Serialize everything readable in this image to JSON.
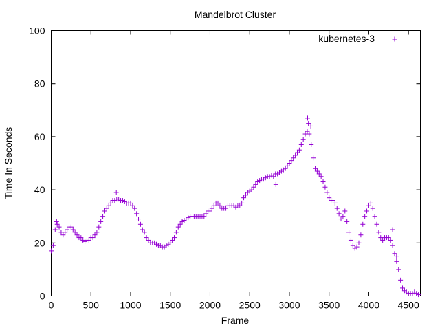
{
  "chart_data": {
    "type": "scatter",
    "title": "Mandelbrot Cluster",
    "xlabel": "Frame",
    "ylabel": "Time In Seconds",
    "xlim": [
      0,
      4650
    ],
    "ylim": [
      0,
      100
    ],
    "x_ticks": [
      0,
      500,
      1000,
      1500,
      2000,
      2500,
      3000,
      3500,
      4000,
      4500
    ],
    "y_ticks": [
      0,
      20,
      40,
      60,
      80,
      100
    ],
    "grid": false,
    "legend_position": "top-right",
    "marker": "+",
    "series": [
      {
        "name": "kubernetes-3",
        "color": "#9400d3",
        "points": [
          [
            0,
            17
          ],
          [
            25,
            19
          ],
          [
            50,
            25
          ],
          [
            75,
            27
          ],
          [
            100,
            26
          ],
          [
            125,
            24
          ],
          [
            150,
            23
          ],
          [
            175,
            24
          ],
          [
            200,
            25
          ],
          [
            225,
            26
          ],
          [
            250,
            26
          ],
          [
            275,
            25
          ],
          [
            300,
            24
          ],
          [
            325,
            23
          ],
          [
            350,
            22
          ],
          [
            375,
            22
          ],
          [
            400,
            21
          ],
          [
            425,
            20.5
          ],
          [
            450,
            21
          ],
          [
            475,
            21
          ],
          [
            500,
            22
          ],
          [
            525,
            22
          ],
          [
            550,
            23
          ],
          [
            575,
            24
          ],
          [
            600,
            26
          ],
          [
            625,
            28
          ],
          [
            650,
            30
          ],
          [
            675,
            32
          ],
          [
            700,
            33
          ],
          [
            725,
            34
          ],
          [
            750,
            35
          ],
          [
            775,
            36
          ],
          [
            800,
            36
          ],
          [
            825,
            36.5
          ],
          [
            850,
            36.5
          ],
          [
            875,
            36
          ],
          [
            900,
            36
          ],
          [
            925,
            35.5
          ],
          [
            950,
            35
          ],
          [
            975,
            35
          ],
          [
            1000,
            35
          ],
          [
            1025,
            34
          ],
          [
            1050,
            33
          ],
          [
            1075,
            31
          ],
          [
            1100,
            29
          ],
          [
            1125,
            27
          ],
          [
            1150,
            25
          ],
          [
            1175,
            24
          ],
          [
            1200,
            22
          ],
          [
            1225,
            21
          ],
          [
            1250,
            20
          ],
          [
            1275,
            20
          ],
          [
            1300,
            20
          ],
          [
            1325,
            19.5
          ],
          [
            1350,
            19
          ],
          [
            1375,
            19
          ],
          [
            1400,
            18.5
          ],
          [
            1425,
            18.5
          ],
          [
            1450,
            19
          ],
          [
            1475,
            19.5
          ],
          [
            1500,
            20
          ],
          [
            1525,
            21
          ],
          [
            1550,
            22
          ],
          [
            1575,
            24
          ],
          [
            1600,
            26
          ],
          [
            1625,
            27
          ],
          [
            1650,
            28
          ],
          [
            1675,
            28.5
          ],
          [
            1700,
            29
          ],
          [
            1725,
            29.5
          ],
          [
            1750,
            30
          ],
          [
            1775,
            30
          ],
          [
            1800,
            30
          ],
          [
            1825,
            30
          ],
          [
            1850,
            30
          ],
          [
            1875,
            30
          ],
          [
            1900,
            30
          ],
          [
            1925,
            30
          ],
          [
            1950,
            31
          ],
          [
            1975,
            32
          ],
          [
            2000,
            32
          ],
          [
            2025,
            33
          ],
          [
            2050,
            34
          ],
          [
            2075,
            35
          ],
          [
            2100,
            35
          ],
          [
            2125,
            34
          ],
          [
            2150,
            33
          ],
          [
            2175,
            33
          ],
          [
            2200,
            33
          ],
          [
            2225,
            34
          ],
          [
            2250,
            34
          ],
          [
            2275,
            34
          ],
          [
            2300,
            34
          ],
          [
            2325,
            33.5
          ],
          [
            2350,
            34
          ],
          [
            2375,
            34
          ],
          [
            2400,
            35
          ],
          [
            2425,
            37
          ],
          [
            2450,
            38
          ],
          [
            2475,
            39
          ],
          [
            2500,
            39.5
          ],
          [
            2525,
            40
          ],
          [
            2550,
            41
          ],
          [
            2575,
            42
          ],
          [
            2600,
            43
          ],
          [
            2625,
            43.5
          ],
          [
            2650,
            44
          ],
          [
            2675,
            44
          ],
          [
            2700,
            44.5
          ],
          [
            2725,
            45
          ],
          [
            2750,
            45
          ],
          [
            2775,
            45.5
          ],
          [
            2800,
            45
          ],
          [
            2825,
            46
          ],
          [
            2850,
            46
          ],
          [
            2875,
            46.5
          ],
          [
            2900,
            47
          ],
          [
            2925,
            47.5
          ],
          [
            2950,
            48
          ],
          [
            2975,
            49
          ],
          [
            3000,
            50
          ],
          [
            3025,
            51
          ],
          [
            3050,
            52
          ],
          [
            3075,
            53
          ],
          [
            3100,
            54
          ],
          [
            3125,
            55
          ],
          [
            3150,
            57
          ],
          [
            3175,
            59
          ],
          [
            3200,
            61
          ],
          [
            3225,
            62
          ],
          [
            3250,
            61
          ],
          [
            3275,
            57
          ],
          [
            3300,
            52
          ],
          [
            3325,
            48
          ],
          [
            3350,
            47
          ],
          [
            3375,
            46
          ],
          [
            3400,
            45
          ],
          [
            3425,
            43
          ],
          [
            3450,
            41
          ],
          [
            3475,
            39
          ],
          [
            3500,
            37
          ],
          [
            3525,
            36
          ],
          [
            3550,
            36
          ],
          [
            3575,
            35
          ],
          [
            3600,
            33
          ],
          [
            3625,
            31
          ],
          [
            3650,
            29
          ],
          [
            3675,
            30
          ],
          [
            3700,
            32
          ],
          [
            3725,
            28
          ],
          [
            3750,
            24
          ],
          [
            3775,
            21
          ],
          [
            3800,
            19
          ],
          [
            3825,
            18
          ],
          [
            3850,
            18.5
          ],
          [
            3875,
            20
          ],
          [
            3900,
            23
          ],
          [
            3925,
            27
          ],
          [
            3950,
            30
          ],
          [
            3975,
            32
          ],
          [
            4000,
            34
          ],
          [
            4025,
            35
          ],
          [
            4050,
            33
          ],
          [
            4075,
            30
          ],
          [
            4100,
            27
          ],
          [
            4125,
            24
          ],
          [
            4150,
            22
          ],
          [
            4175,
            21
          ],
          [
            4200,
            22
          ],
          [
            4225,
            22
          ],
          [
            4250,
            22
          ],
          [
            4275,
            21
          ],
          [
            4300,
            19
          ],
          [
            4325,
            16
          ],
          [
            4350,
            13
          ],
          [
            4375,
            10
          ],
          [
            4400,
            6
          ],
          [
            4425,
            3
          ],
          [
            4450,
            2
          ],
          [
            4475,
            1.5
          ],
          [
            4500,
            1
          ],
          [
            4525,
            1
          ],
          [
            4550,
            1
          ],
          [
            4575,
            1.5
          ],
          [
            4600,
            1
          ],
          [
            4625,
            0.5
          ],
          [
            68,
            28
          ],
          [
            820,
            39
          ],
          [
            2830,
            42
          ],
          [
            3230,
            67
          ],
          [
            3240,
            65
          ],
          [
            3270,
            64
          ],
          [
            4350,
            15
          ],
          [
            4300,
            25
          ]
        ]
      }
    ]
  }
}
